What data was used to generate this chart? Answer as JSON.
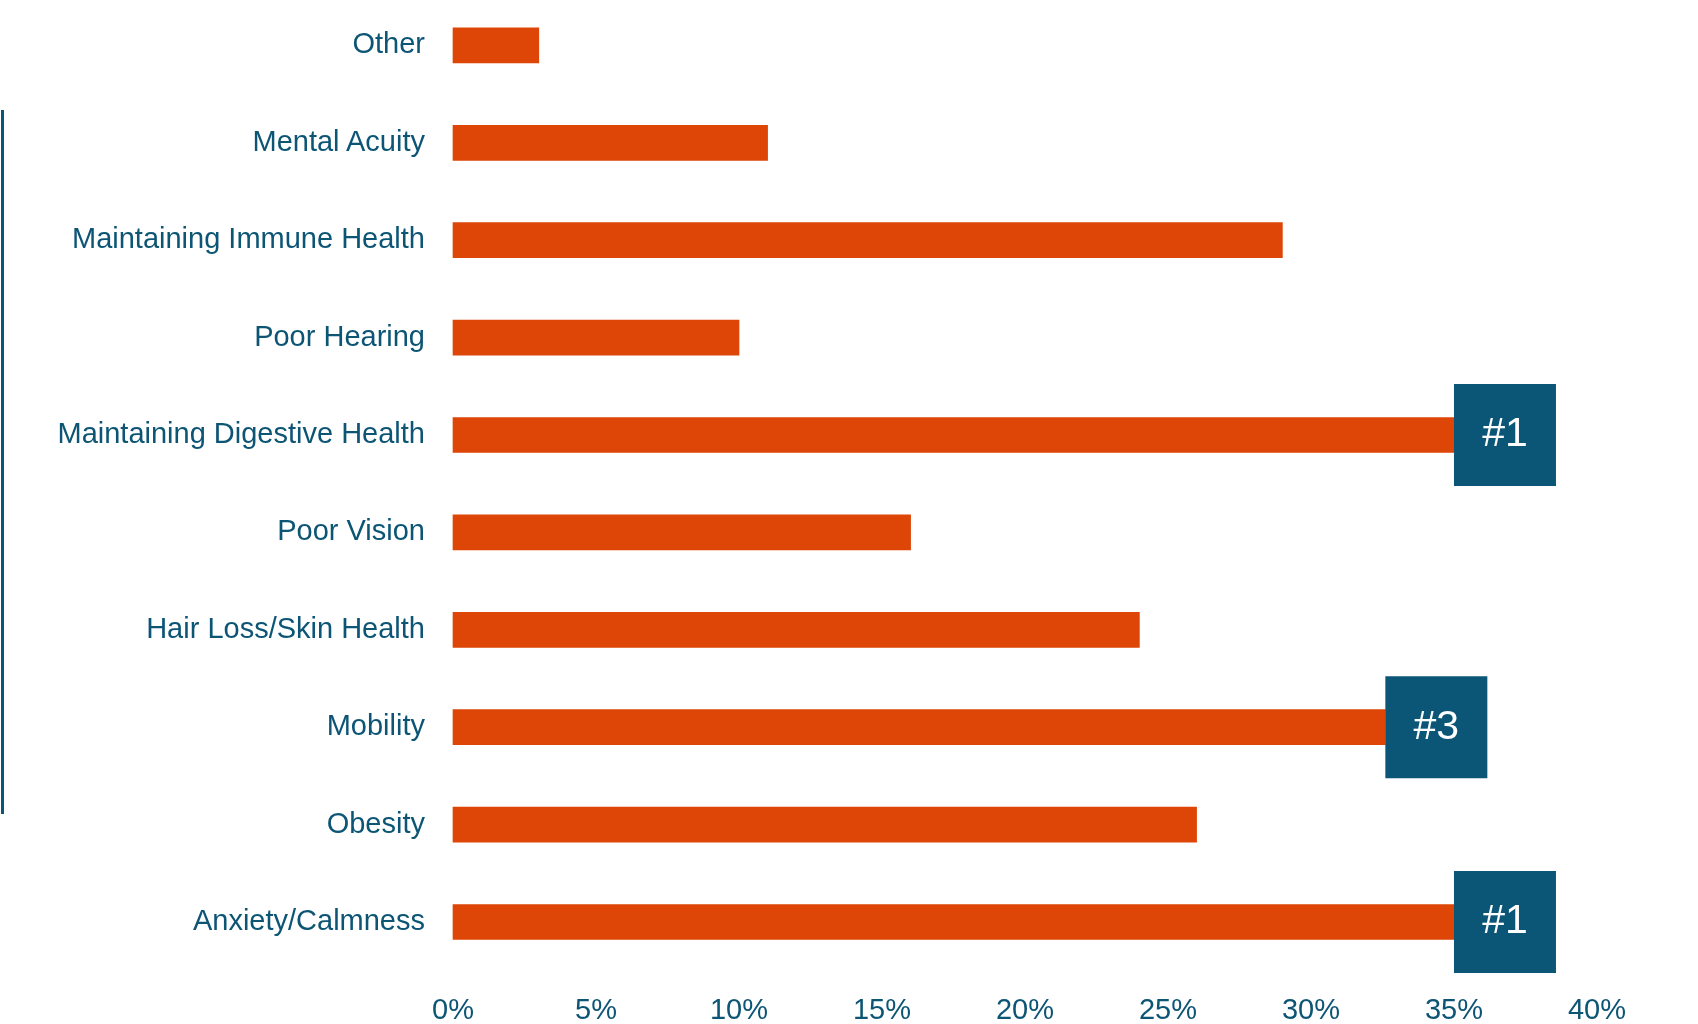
{
  "chart_data": {
    "type": "bar",
    "orientation": "horizontal",
    "categories": [
      "Other",
      "Mental Acuity",
      "Maintaining Immune Health",
      "Poor Hearing",
      "Maintaining Digestive Health",
      "Poor Vision",
      "Hair Loss/Skin Health",
      "Mobility",
      "Obesity",
      "Anxiety/Calmness"
    ],
    "values": [
      3,
      11,
      29,
      10,
      35,
      16,
      24,
      32.6,
      26,
      35
    ],
    "color": "#dd4606",
    "xlim": [
      0,
      40
    ],
    "xticks": [
      {
        "value": 0,
        "label": "0%"
      },
      {
        "value": 5,
        "label": "5%"
      },
      {
        "value": 10,
        "label": "10%"
      },
      {
        "value": 15,
        "label": "15%"
      },
      {
        "value": 20,
        "label": "20%"
      },
      {
        "value": 25,
        "label": "25%"
      },
      {
        "value": 30,
        "label": "30%"
      },
      {
        "value": 35,
        "label": "35%"
      },
      {
        "value": 40,
        "label": "40%"
      }
    ],
    "annotations": [
      "#1",
      "#3",
      "#1"
    ]
  }
}
